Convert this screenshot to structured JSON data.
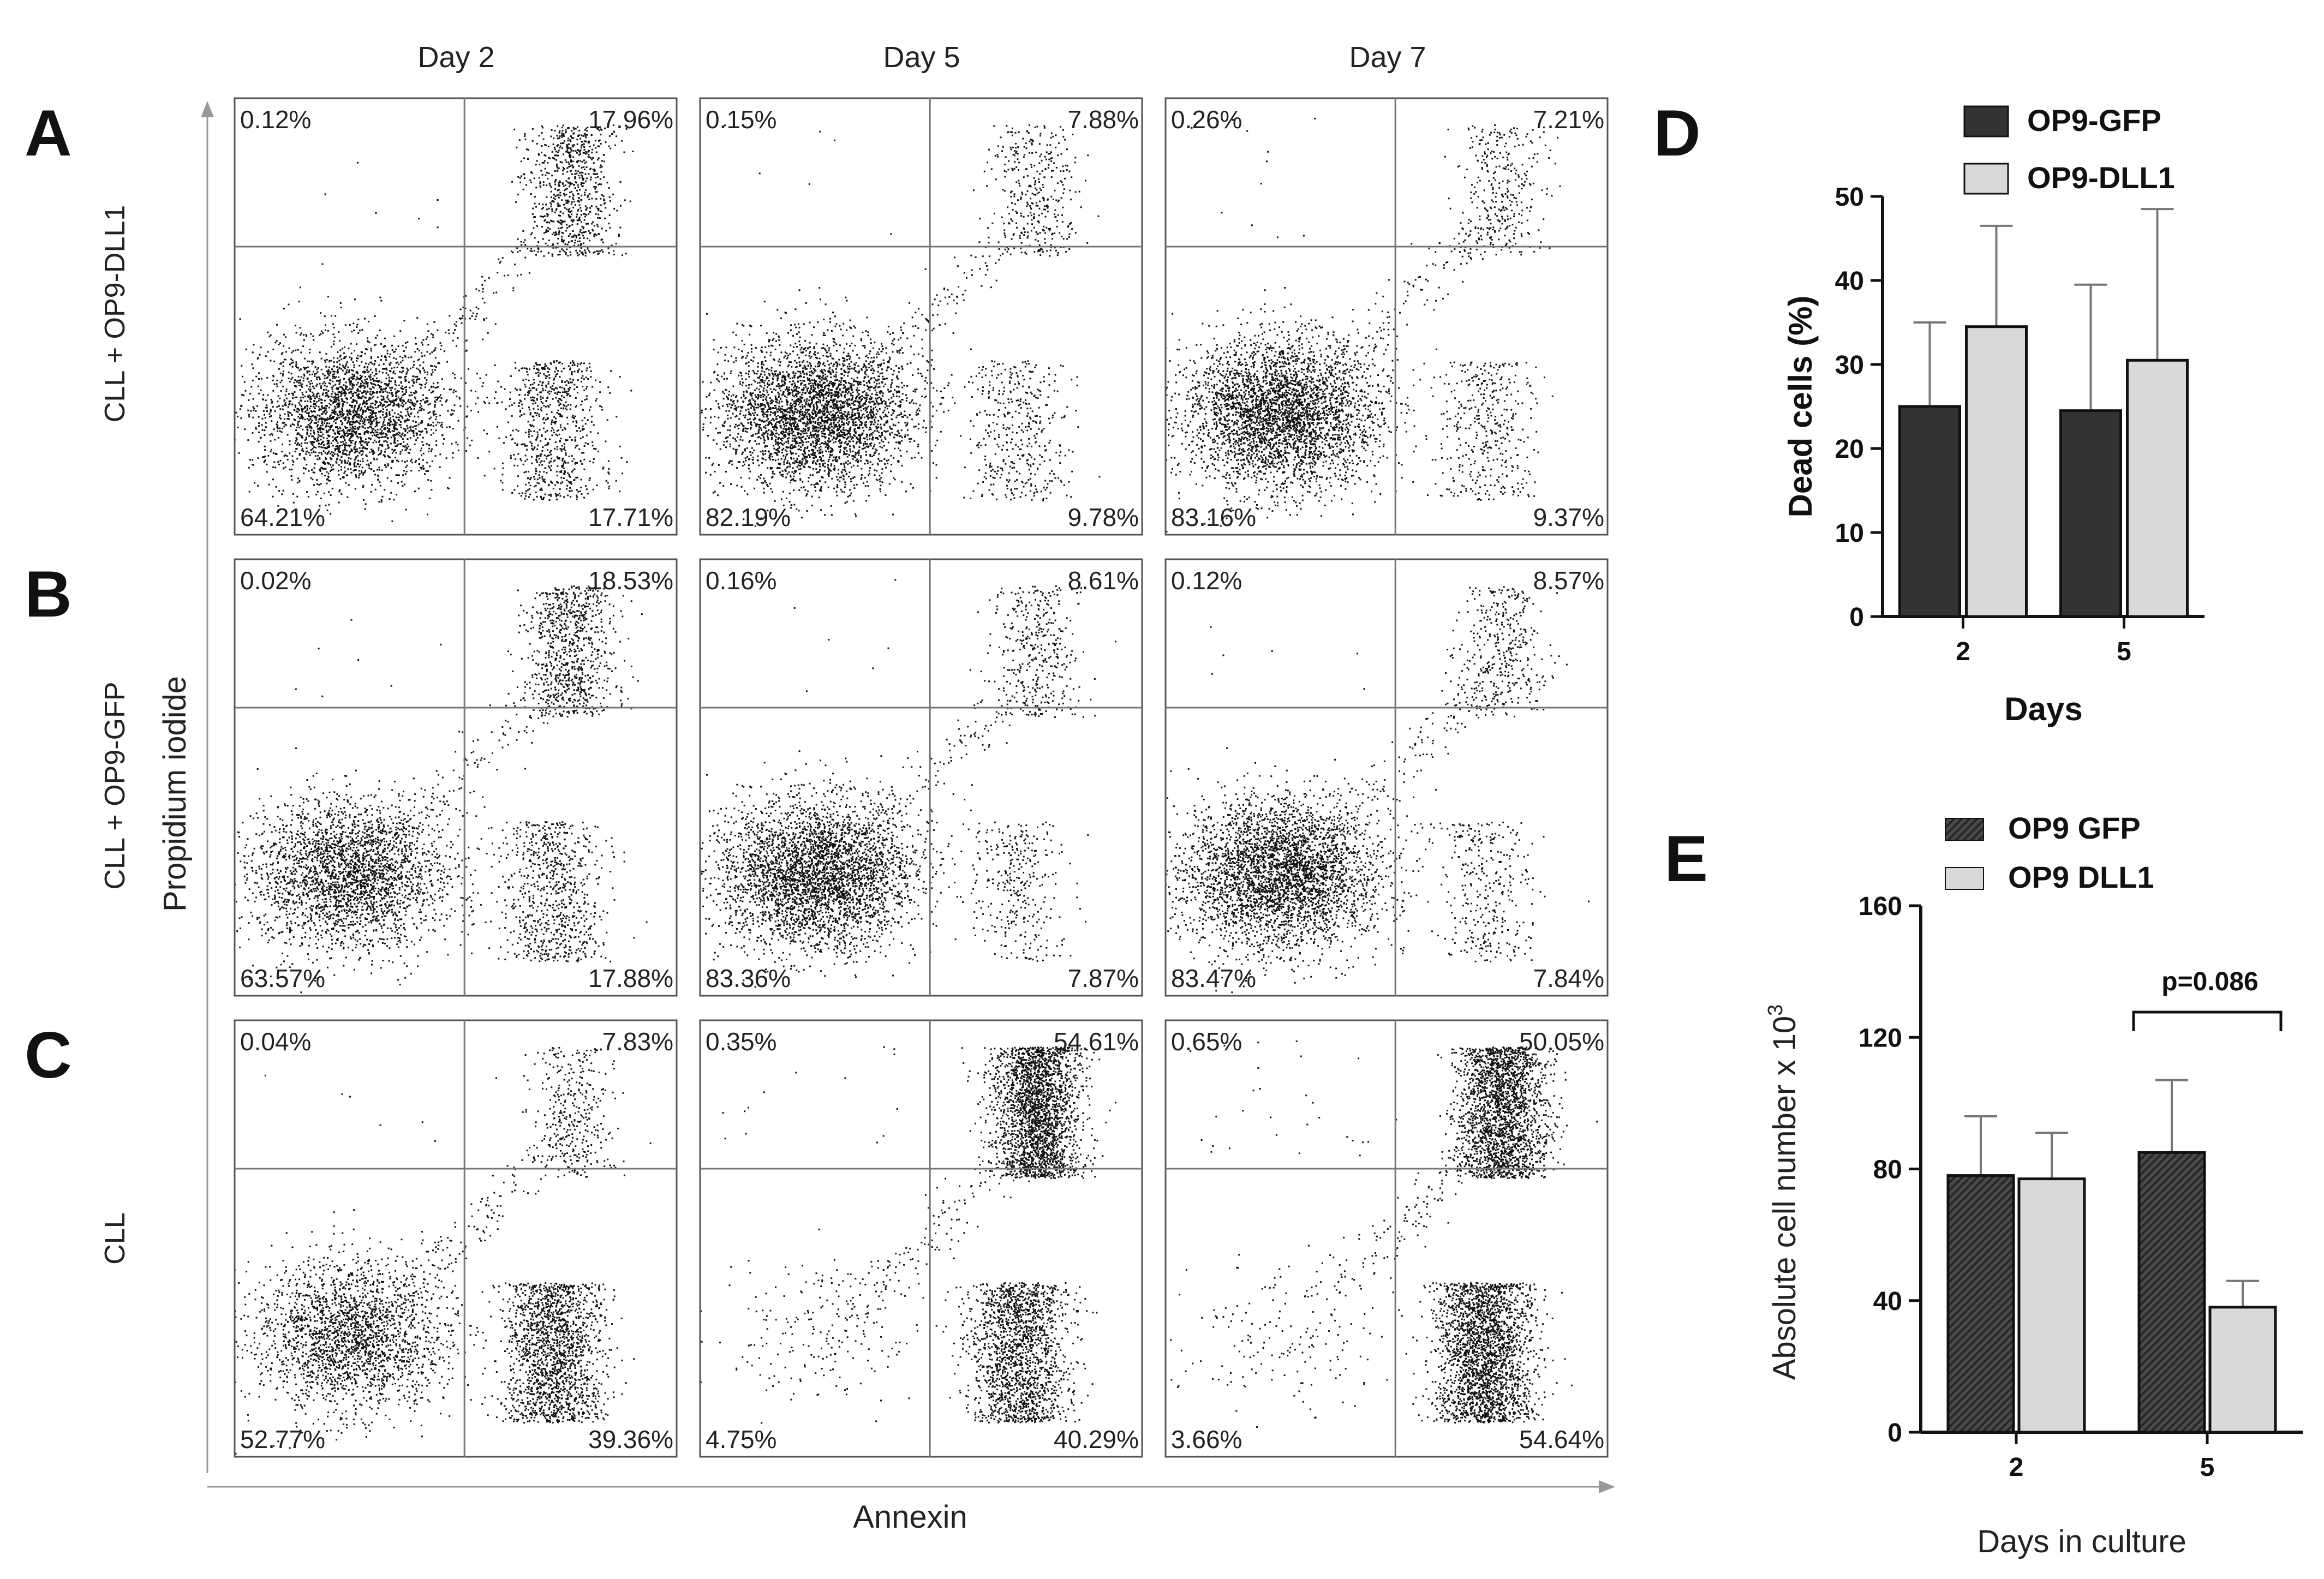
{
  "chart_data": [
    {
      "type": "scatter",
      "name": "flow-cytometry-grid",
      "columns": [
        "Day 2",
        "Day 5",
        "Day 7"
      ],
      "rows": [
        {
          "letter": "A",
          "label": "CLL + OP9-DLL1"
        },
        {
          "letter": "B",
          "label": "CLL + OP9-GFP"
        },
        {
          "letter": "C",
          "label": "CLL"
        }
      ],
      "xlabel": "Annexin",
      "ylabel": "Propidium iodide",
      "quadrants": [
        [
          {
            "ul": "0.12%",
            "ur": "17.96%",
            "ll": "64.21%",
            "lr": "17.71%"
          },
          {
            "ul": "0.15%",
            "ur": "7.88%",
            "ll": "82.19%",
            "lr": "9.78%"
          },
          {
            "ul": "0.26%",
            "ur": "7.21%",
            "ll": "83.16%",
            "lr": "9.37%"
          }
        ],
        [
          {
            "ul": "0.02%",
            "ur": "18.53%",
            "ll": "63.57%",
            "lr": "17.88%"
          },
          {
            "ul": "0.16%",
            "ur": "8.61%",
            "ll": "83.36%",
            "lr": "7.87%"
          },
          {
            "ul": "0.12%",
            "ur": "8.57%",
            "ll": "83.47%",
            "lr": "7.84%"
          }
        ],
        [
          {
            "ul": "0.04%",
            "ur": "7.83%",
            "ll": "52.77%",
            "lr": "39.36%"
          },
          {
            "ul": "0.35%",
            "ur": "54.61%",
            "ll": "4.75%",
            "lr": "40.29%"
          },
          {
            "ul": "0.65%",
            "ur": "50.05%",
            "ll": "3.66%",
            "lr": "54.64%"
          }
        ]
      ]
    },
    {
      "type": "bar",
      "panel": "D",
      "categories": [
        "2",
        "5"
      ],
      "series": [
        {
          "name": "OP9-GFP",
          "values": [
            25,
            24.5
          ],
          "errors": [
            10,
            15
          ]
        },
        {
          "name": "OP9-DLL1",
          "values": [
            34.5,
            30.5
          ],
          "errors": [
            12,
            18
          ]
        }
      ],
      "xlabel": "Days",
      "ylabel": "Dead cells (%)",
      "ylim": [
        0,
        50
      ],
      "yticks": [
        "0",
        "10",
        "20",
        "30",
        "40",
        "50"
      ],
      "colors": {
        "OP9-GFP": "#333333",
        "OP9-DLL1": "#d9d9d9"
      }
    },
    {
      "type": "bar",
      "panel": "E",
      "categories": [
        "2",
        "5"
      ],
      "series": [
        {
          "name": "OP9 GFP",
          "values": [
            78,
            85
          ],
          "errors": [
            18,
            22
          ]
        },
        {
          "name": "OP9 DLL1",
          "values": [
            77,
            38
          ],
          "errors": [
            14,
            8
          ]
        }
      ],
      "xlabel": "Days in culture",
      "ylabel": "Absolute cell number x 10",
      "ylabel_exp": "3",
      "ylim": [
        0,
        160
      ],
      "yticks": [
        "0",
        "40",
        "80",
        "120",
        "160"
      ],
      "annotation": "p=0.086",
      "colors": {
        "OP9 GFP": "#444444",
        "OP9 DLL1": "#d9d9d9"
      }
    }
  ]
}
